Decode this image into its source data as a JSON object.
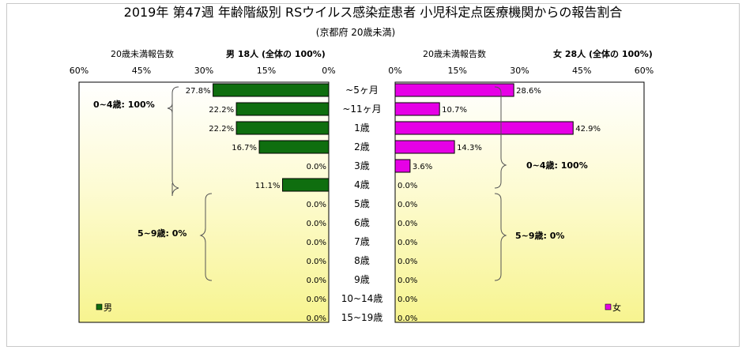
{
  "chart_data": {
    "type": "bar",
    "title": "2019年 第47週 年齢階級別 RSウイルス感染症患者 小児科定点医療機関からの報告割合",
    "subtitle": "(京都府 20歳未満)",
    "categories": [
      "~5ヶ月",
      "~11ヶ月",
      "1歳",
      "2歳",
      "3歳",
      "4歳",
      "5歳",
      "6歳",
      "7歳",
      "8歳",
      "9歳",
      "10~14歳",
      "15~19歳"
    ],
    "axis_ticks": [
      "60%",
      "45%",
      "30%",
      "15%",
      "0%"
    ],
    "axis_ticks_right": [
      "0%",
      "15%",
      "30%",
      "45%",
      "60%"
    ],
    "xlim": [
      0,
      60
    ],
    "left_panel": {
      "axis_caption": "20歳未満報告数",
      "header": "男  18人  (全体の  100%)",
      "legend": "男",
      "color": "#0f6e0f",
      "values": [
        27.8,
        22.2,
        22.2,
        16.7,
        0.0,
        11.1,
        0.0,
        0.0,
        0.0,
        0.0,
        0.0,
        0.0,
        0.0
      ],
      "value_labels": [
        "27.8%",
        "22.2%",
        "22.2%",
        "16.7%",
        "0.0%",
        "11.1%",
        "0.0%",
        "0.0%",
        "0.0%",
        "0.0%",
        "0.0%",
        "0.0%",
        "0.0%"
      ],
      "group_labels": [
        "0~4歳: 100%",
        "5~9歳: 0%"
      ]
    },
    "right_panel": {
      "axis_caption": "20歳未満報告数",
      "header": "女  28人  (全体の  100%)",
      "legend": "女",
      "color": "#e600e6",
      "values": [
        28.6,
        10.7,
        42.9,
        14.3,
        3.6,
        0.0,
        0.0,
        0.0,
        0.0,
        0.0,
        0.0,
        0.0,
        0.0
      ],
      "value_labels": [
        "28.6%",
        "10.7%",
        "42.9%",
        "14.3%",
        "3.6%",
        "0.0%",
        "0.0%",
        "0.0%",
        "0.0%",
        "0.0%",
        "0.0%",
        "0.0%",
        "0.0%"
      ],
      "group_labels": [
        "0~4歳: 100%",
        "5~9歳: 0%"
      ]
    },
    "grid": false
  }
}
